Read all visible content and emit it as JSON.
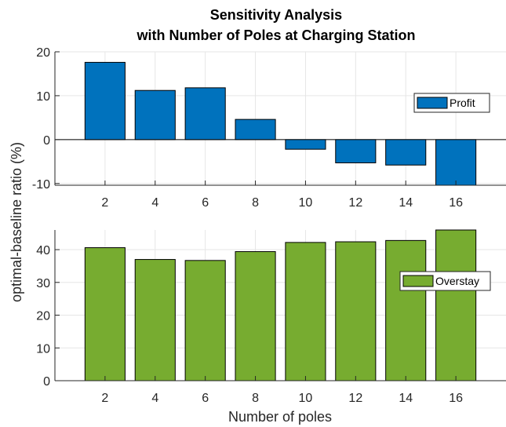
{
  "chart_data": {
    "type": "bar",
    "title_line1": "Sensitivity Analysis",
    "title_line2": "with Number of Poles at Charging Station",
    "xlabel": "Number of poles",
    "ylabel": "optimal-baseline ratio (%)",
    "categories": [
      "2",
      "4",
      "6",
      "8",
      "10",
      "12",
      "14",
      "16"
    ],
    "grid": true,
    "panels": [
      {
        "series": [
          {
            "name": "Profit",
            "values": [
              17.6,
              11.2,
              11.8,
              4.6,
              -2.2,
              -5.3,
              -5.8,
              -10.4
            ],
            "color": "#0072BD"
          }
        ],
        "ylim": [
          -10.4,
          20
        ],
        "yticks": [
          -10,
          0,
          10,
          20
        ],
        "ytick_labels": [
          "-10",
          "0",
          "10",
          "20"
        ],
        "legend_placement": "top-right"
      },
      {
        "series": [
          {
            "name": "Overstay",
            "values": [
              40.6,
              37.0,
              36.7,
              39.4,
              42.2,
              42.4,
              42.8,
              46.0
            ],
            "color": "#77AC30"
          }
        ],
        "ylim": [
          0,
          46
        ],
        "yticks": [
          0,
          10,
          20,
          30,
          40
        ],
        "ytick_labels": [
          "0",
          "10",
          "20",
          "30",
          "40"
        ],
        "legend_placement": "middle-right"
      }
    ]
  }
}
